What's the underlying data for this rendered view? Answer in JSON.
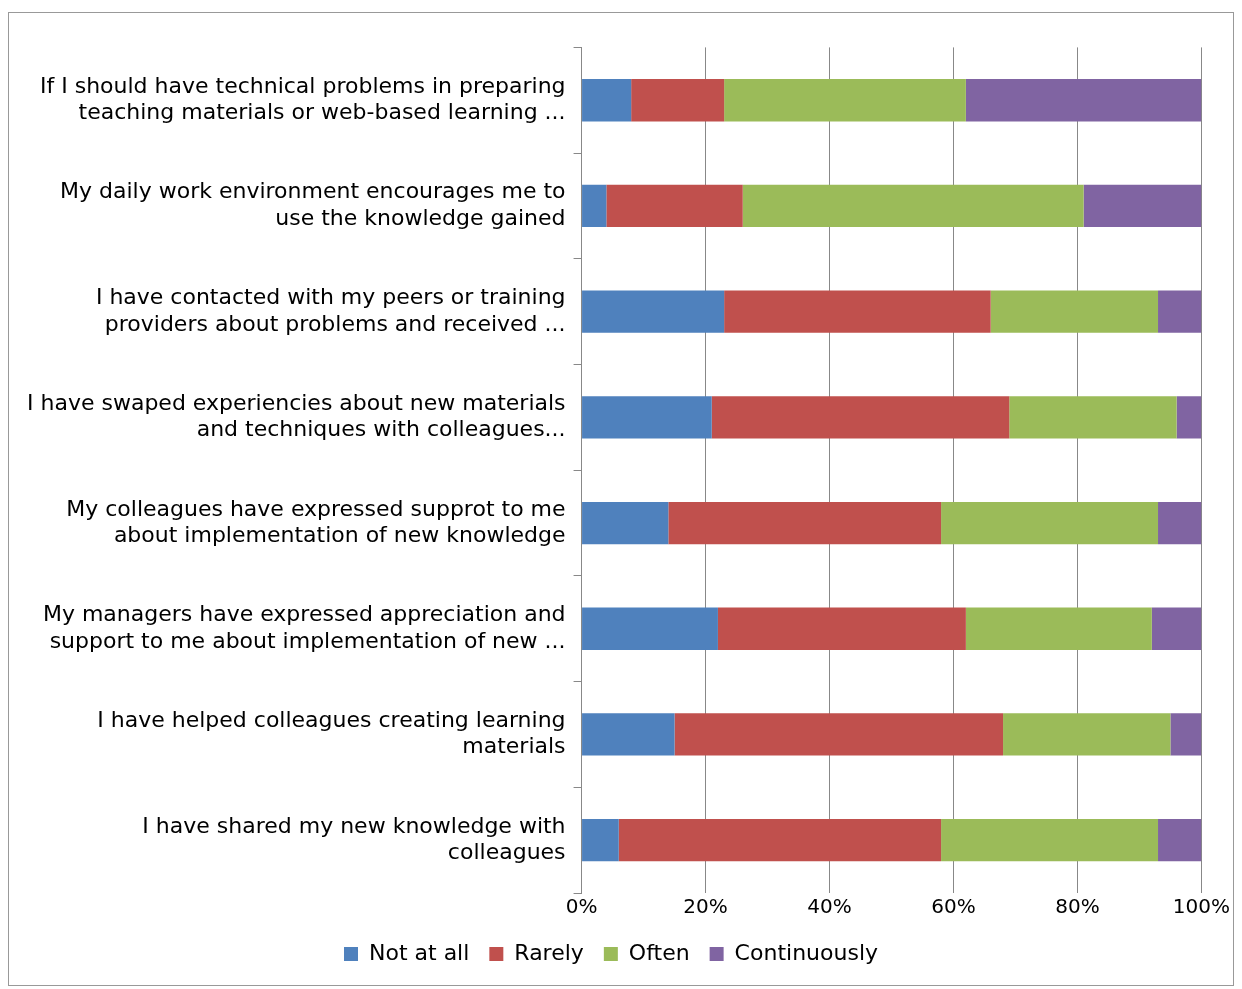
{
  "chart_data": {
    "type": "bar",
    "orientation": "horizontal",
    "stacked": true,
    "categories": [
      "If I should have technical problems in preparing teaching materials or web-based learning ...",
      "My daily work environment encourages me to use the knowledge gained",
      "I have contacted with my peers or training providers about problems and received ...",
      "I have swaped experiencies about new materials and techniques with colleagues...",
      "My colleagues have expressed supprot to me about implementation of new knowledge",
      "My managers have expressed appreciation and support to me about implementation of new ...",
      "I have helped colleagues creating learning materials",
      "I have shared my new knowledge with colleagues"
    ],
    "series": [
      {
        "name": "Not at all",
        "color": "#4f81bd",
        "values": [
          8,
          4,
          23,
          21,
          14,
          22,
          15,
          6
        ]
      },
      {
        "name": "Rarely",
        "color": "#c0504d",
        "values": [
          15,
          22,
          43,
          48,
          44,
          40,
          53,
          52
        ]
      },
      {
        "name": "Often",
        "color": "#9bbb59",
        "values": [
          39,
          55,
          27,
          27,
          35,
          30,
          27,
          35
        ]
      },
      {
        "name": "Continuously",
        "color": "#8064a2",
        "values": [
          38,
          19,
          7,
          4,
          7,
          8,
          5,
          7
        ]
      }
    ],
    "xlim": [
      0,
      100
    ],
    "xticks": [
      {
        "value": 0,
        "label": "0%"
      },
      {
        "value": 20,
        "label": "20%"
      },
      {
        "value": 40,
        "label": "40%"
      },
      {
        "value": 60,
        "label": "60%"
      },
      {
        "value": 80,
        "label": "80%"
      },
      {
        "value": 100,
        "label": "100%"
      }
    ],
    "grid": "x",
    "legend": "bottom"
  }
}
